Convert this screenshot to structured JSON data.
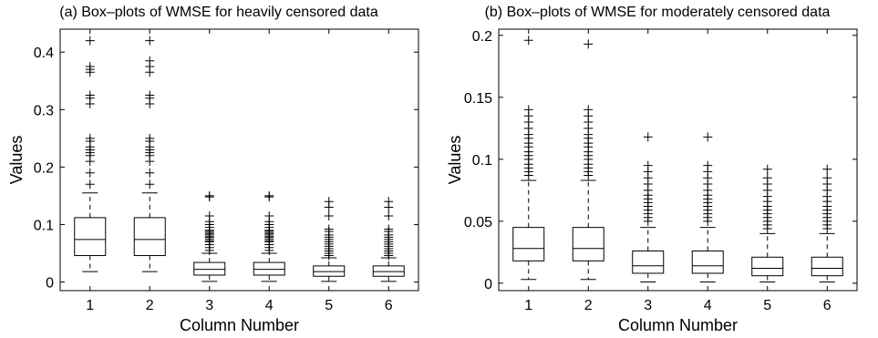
{
  "chart_data": [
    {
      "type": "box",
      "title": "(a) Box–plots of WMSE for heavily censored data",
      "xlabel": "Column Number",
      "ylabel": "Values",
      "ylim": [
        -0.015,
        0.44
      ],
      "yticks": [
        0,
        0.1,
        0.2,
        0.3,
        0.4
      ],
      "ytick_labels": [
        "0",
        "0.1",
        "0.2",
        "0.3",
        "0.4"
      ],
      "categories": [
        "1",
        "2",
        "3",
        "4",
        "5",
        "6"
      ],
      "boxes": [
        {
          "whisker_low": 0.018,
          "q1": 0.046,
          "median": 0.074,
          "q3": 0.112,
          "whisker_high": 0.155,
          "outliers": [
            0.17,
            0.19,
            0.21,
            0.22,
            0.225,
            0.23,
            0.235,
            0.245,
            0.25,
            0.31,
            0.32,
            0.325,
            0.365,
            0.37,
            0.375,
            0.42
          ]
        },
        {
          "whisker_low": 0.018,
          "q1": 0.046,
          "median": 0.074,
          "q3": 0.112,
          "whisker_high": 0.155,
          "outliers": [
            0.17,
            0.19,
            0.21,
            0.22,
            0.225,
            0.23,
            0.235,
            0.245,
            0.25,
            0.31,
            0.32,
            0.325,
            0.365,
            0.375,
            0.385,
            0.42
          ]
        },
        {
          "whisker_low": 0.001,
          "q1": 0.012,
          "median": 0.022,
          "q3": 0.034,
          "whisker_high": 0.05,
          "outliers": [
            0.055,
            0.06,
            0.065,
            0.07,
            0.072,
            0.075,
            0.078,
            0.08,
            0.083,
            0.085,
            0.088,
            0.09,
            0.095,
            0.1,
            0.105,
            0.115,
            0.148,
            0.15
          ]
        },
        {
          "whisker_low": 0.001,
          "q1": 0.012,
          "median": 0.022,
          "q3": 0.034,
          "whisker_high": 0.05,
          "outliers": [
            0.055,
            0.06,
            0.065,
            0.07,
            0.072,
            0.075,
            0.078,
            0.08,
            0.083,
            0.085,
            0.088,
            0.09,
            0.095,
            0.1,
            0.105,
            0.115,
            0.148,
            0.15
          ]
        },
        {
          "whisker_low": 0.001,
          "q1": 0.01,
          "median": 0.018,
          "q3": 0.028,
          "whisker_high": 0.042,
          "outliers": [
            0.046,
            0.05,
            0.054,
            0.058,
            0.062,
            0.066,
            0.07,
            0.074,
            0.078,
            0.082,
            0.088,
            0.092,
            0.115,
            0.13,
            0.14
          ]
        },
        {
          "whisker_low": 0.001,
          "q1": 0.01,
          "median": 0.018,
          "q3": 0.028,
          "whisker_high": 0.042,
          "outliers": [
            0.046,
            0.05,
            0.054,
            0.058,
            0.062,
            0.066,
            0.07,
            0.074,
            0.078,
            0.082,
            0.088,
            0.092,
            0.115,
            0.13,
            0.14
          ]
        }
      ]
    },
    {
      "type": "box",
      "title": "(b) Box–plots of WMSE for moderately censored data",
      "xlabel": "Column Number",
      "ylabel": "Values",
      "ylim": [
        -0.006,
        0.205
      ],
      "yticks": [
        0,
        0.05,
        0.1,
        0.15,
        0.2
      ],
      "ytick_labels": [
        "0",
        "0.05",
        "0.1",
        "0.15",
        "0.2"
      ],
      "categories": [
        "1",
        "2",
        "3",
        "4",
        "5",
        "6"
      ],
      "boxes": [
        {
          "whisker_low": 0.003,
          "q1": 0.018,
          "median": 0.028,
          "q3": 0.045,
          "whisker_high": 0.083,
          "outliers": [
            0.087,
            0.09,
            0.093,
            0.096,
            0.1,
            0.103,
            0.106,
            0.11,
            0.113,
            0.117,
            0.12,
            0.125,
            0.13,
            0.135,
            0.14,
            0.196
          ]
        },
        {
          "whisker_low": 0.003,
          "q1": 0.018,
          "median": 0.028,
          "q3": 0.045,
          "whisker_high": 0.083,
          "outliers": [
            0.087,
            0.09,
            0.093,
            0.096,
            0.1,
            0.103,
            0.106,
            0.11,
            0.113,
            0.117,
            0.12,
            0.125,
            0.13,
            0.135,
            0.14,
            0.193
          ]
        },
        {
          "whisker_low": 0.001,
          "q1": 0.008,
          "median": 0.014,
          "q3": 0.026,
          "whisker_high": 0.045,
          "outliers": [
            0.05,
            0.053,
            0.056,
            0.059,
            0.062,
            0.065,
            0.068,
            0.071,
            0.075,
            0.08,
            0.085,
            0.09,
            0.095,
            0.118
          ]
        },
        {
          "whisker_low": 0.001,
          "q1": 0.008,
          "median": 0.014,
          "q3": 0.026,
          "whisker_high": 0.045,
          "outliers": [
            0.05,
            0.053,
            0.056,
            0.059,
            0.062,
            0.065,
            0.068,
            0.071,
            0.075,
            0.08,
            0.085,
            0.09,
            0.095,
            0.118
          ]
        },
        {
          "whisker_low": 0.001,
          "q1": 0.006,
          "median": 0.012,
          "q3": 0.021,
          "whisker_high": 0.04,
          "outliers": [
            0.044,
            0.047,
            0.05,
            0.053,
            0.056,
            0.059,
            0.062,
            0.066,
            0.07,
            0.075,
            0.08,
            0.085,
            0.092
          ]
        },
        {
          "whisker_low": 0.001,
          "q1": 0.006,
          "median": 0.012,
          "q3": 0.021,
          "whisker_high": 0.04,
          "outliers": [
            0.044,
            0.047,
            0.05,
            0.053,
            0.056,
            0.059,
            0.062,
            0.066,
            0.07,
            0.075,
            0.08,
            0.085,
            0.092
          ]
        }
      ]
    }
  ]
}
